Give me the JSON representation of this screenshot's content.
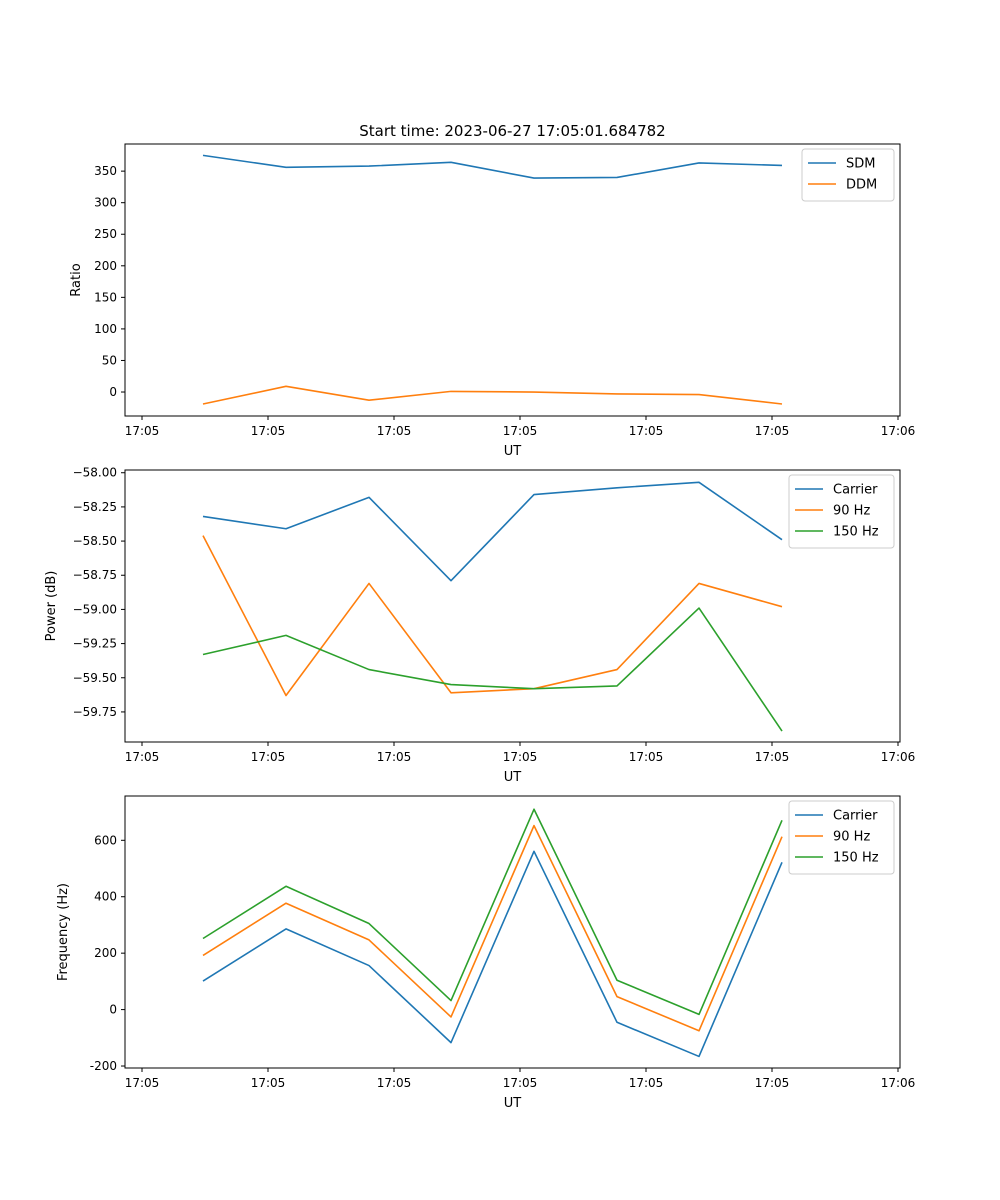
{
  "title": "Start time: 2023-06-27 17:05:01.684782",
  "chart_data": [
    {
      "type": "line",
      "xlabel": "UT",
      "ylabel": "Ratio",
      "x_tick_labels": [
        "17:05",
        "17:05",
        "17:05",
        "17:05",
        "17:05",
        "17:05",
        "17:06"
      ],
      "yticks": [
        0,
        50,
        100,
        150,
        200,
        250,
        300,
        350
      ],
      "ylim": [
        -38,
        393
      ],
      "legend": "upper right",
      "series": [
        {
          "name": "SDM",
          "color": "#1f77b4",
          "values": [
            375,
            356,
            358,
            364,
            339,
            340,
            363,
            359
          ]
        },
        {
          "name": "DDM",
          "color": "#ff7f0e",
          "values": [
            -19,
            9,
            -13,
            1,
            0,
            -3,
            -4,
            -19
          ]
        }
      ]
    },
    {
      "type": "line",
      "xlabel": "UT",
      "ylabel": "Power (dB)",
      "x_tick_labels": [
        "17:05",
        "17:05",
        "17:05",
        "17:05",
        "17:05",
        "17:05",
        "17:06"
      ],
      "yticks": [
        -59.75,
        -59.5,
        -59.25,
        -59.0,
        -58.75,
        -58.5,
        -58.25,
        -58.0
      ],
      "ytick_labels": [
        "−59.75",
        "−59.50",
        "−59.25",
        "−59.00",
        "−58.75",
        "−58.50",
        "−58.25",
        "−58.00"
      ],
      "ylim": [
        -59.97,
        -57.98
      ],
      "legend": "upper right",
      "series": [
        {
          "name": "Carrier",
          "color": "#1f77b4",
          "values": [
            -58.32,
            -58.41,
            -58.18,
            -58.79,
            -58.16,
            -58.11,
            -58.07,
            -58.49
          ]
        },
        {
          "name": "90 Hz",
          "color": "#ff7f0e",
          "values": [
            -58.46,
            -59.63,
            -58.81,
            -59.61,
            -59.58,
            -59.44,
            -58.81,
            -58.98
          ]
        },
        {
          "name": "150 Hz",
          "color": "#2ca02c",
          "values": [
            -59.33,
            -59.19,
            -59.44,
            -59.55,
            -59.58,
            -59.56,
            -58.99,
            -59.89
          ]
        }
      ]
    },
    {
      "type": "line",
      "xlabel": "UT",
      "ylabel": "Frequency (Hz)",
      "x_tick_labels": [
        "17:05",
        "17:05",
        "17:05",
        "17:05",
        "17:05",
        "17:05",
        "17:06"
      ],
      "yticks": [
        -200,
        0,
        200,
        400,
        600
      ],
      "ylim": [
        -207,
        757
      ],
      "legend": "upper right",
      "series": [
        {
          "name": "Carrier",
          "color": "#1f77b4",
          "values": [
            101,
            286,
            156,
            -117,
            561,
            -45,
            -166,
            522
          ]
        },
        {
          "name": "90 Hz",
          "color": "#ff7f0e",
          "values": [
            192,
            377,
            247,
            -26,
            652,
            46,
            -75,
            613
          ]
        },
        {
          "name": "150 Hz",
          "color": "#2ca02c",
          "values": [
            252,
            437,
            305,
            32,
            710,
            104,
            -17,
            671
          ]
        }
      ]
    }
  ]
}
